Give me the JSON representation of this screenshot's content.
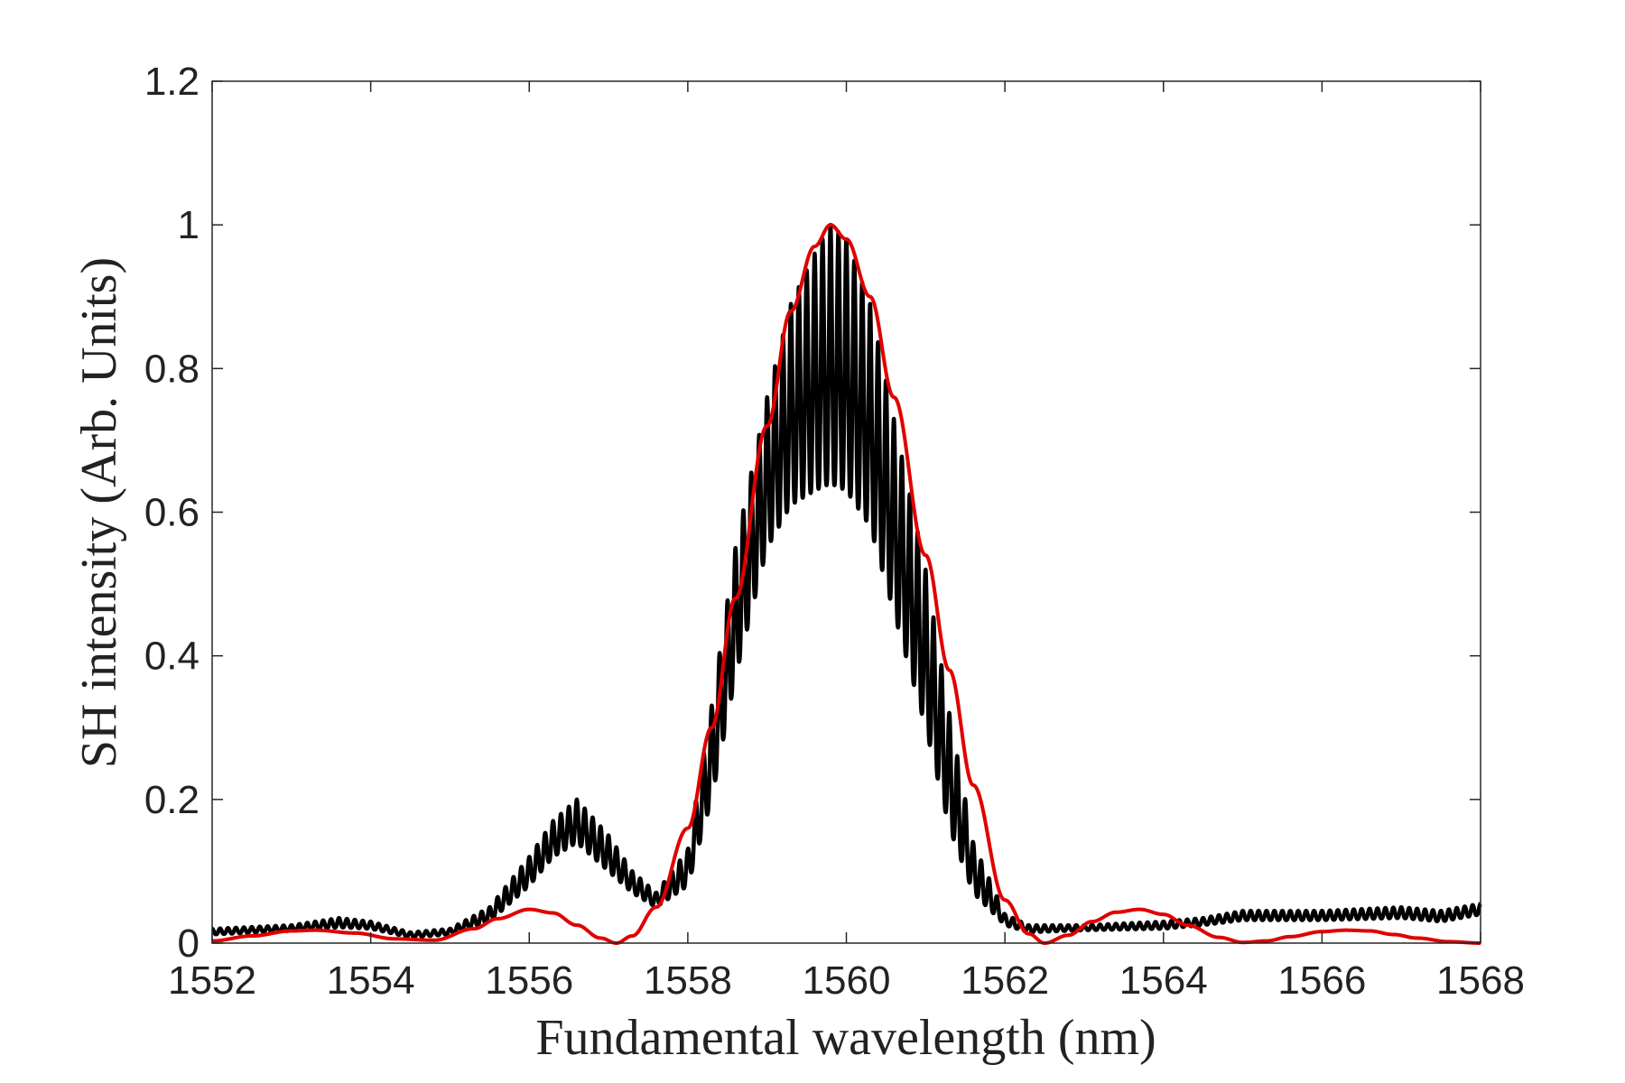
{
  "chart_data": {
    "type": "line",
    "title": "",
    "xlabel": "Fundamental wavelength (nm)",
    "ylabel": "SH intensity (Arb. Units)",
    "xlim": [
      1552,
      1568
    ],
    "ylim": [
      0,
      1.2
    ],
    "x_ticks": [
      1552,
      1554,
      1556,
      1558,
      1560,
      1562,
      1564,
      1566,
      1568
    ],
    "x_tick_labels": [
      "1552",
      "1554",
      "1556",
      "1558",
      "1560",
      "1562",
      "1564",
      "1566",
      "1568"
    ],
    "y_ticks": [
      0,
      0.2,
      0.4,
      0.6,
      0.8,
      1.0,
      1.2
    ],
    "y_tick_labels": [
      "0",
      "0.2",
      "0.4",
      "0.6",
      "0.8",
      "1",
      "1.2"
    ],
    "grid": false,
    "legend": "none",
    "series": [
      {
        "color": "#000000",
        "style": "solid",
        "oscillation_period_nm": 0.1,
        "upper_envelope": {
          "x": [
            1552,
            1553,
            1553.6,
            1554,
            1554.5,
            1555,
            1555.5,
            1556,
            1556.3,
            1556.6,
            1557,
            1557.3,
            1557.6,
            1558,
            1558.3,
            1558.6,
            1559,
            1559.3,
            1559.6,
            1559.8,
            1560,
            1560.3,
            1560.6,
            1561,
            1561.3,
            1561.6,
            1562,
            1562.3,
            1563,
            1564,
            1564.5,
            1565,
            1566,
            1567,
            1567.5,
            1568
          ],
          "y": [
            0.02,
            0.025,
            0.035,
            0.03,
            0.015,
            0.02,
            0.05,
            0.12,
            0.17,
            0.2,
            0.15,
            0.1,
            0.07,
            0.13,
            0.33,
            0.55,
            0.76,
            0.89,
            0.96,
            1.0,
            0.98,
            0.89,
            0.73,
            0.52,
            0.32,
            0.14,
            0.04,
            0.025,
            0.025,
            0.03,
            0.035,
            0.045,
            0.045,
            0.05,
            0.045,
            0.055
          ]
        },
        "lower_envelope": {
          "x": [
            1552,
            1553,
            1553.6,
            1554,
            1554.5,
            1555,
            1555.5,
            1556,
            1556.3,
            1556.6,
            1557,
            1557.3,
            1557.6,
            1558,
            1558.3,
            1558.6,
            1559,
            1559.3,
            1559.6,
            1559.8,
            1560,
            1560.3,
            1560.6,
            1561,
            1561.3,
            1561.6,
            1562,
            1562.3,
            1563,
            1564,
            1564.5,
            1565,
            1566,
            1567,
            1567.5,
            1568
          ],
          "y": [
            0.012,
            0.017,
            0.022,
            0.02,
            0.008,
            0.012,
            0.03,
            0.08,
            0.12,
            0.14,
            0.1,
            0.07,
            0.05,
            0.08,
            0.2,
            0.37,
            0.55,
            0.61,
            0.63,
            0.64,
            0.63,
            0.58,
            0.46,
            0.3,
            0.16,
            0.07,
            0.025,
            0.015,
            0.018,
            0.02,
            0.025,
            0.032,
            0.032,
            0.035,
            0.03,
            0.04
          ]
        }
      },
      {
        "color": "#e00000",
        "style": "solid",
        "x": [
          1552,
          1552.5,
          1553,
          1553.3,
          1553.8,
          1554.3,
          1554.8,
          1555.3,
          1555.6,
          1556,
          1556.3,
          1556.6,
          1556.9,
          1557.1,
          1557.3,
          1557.6,
          1558,
          1558.3,
          1558.6,
          1559,
          1559.3,
          1559.6,
          1559.8,
          1560,
          1560.3,
          1560.6,
          1561,
          1561.3,
          1561.6,
          1562,
          1562.3,
          1562.5,
          1562.8,
          1563.1,
          1563.4,
          1563.7,
          1564,
          1564.3,
          1564.7,
          1565,
          1565.3,
          1565.6,
          1566,
          1566.3,
          1566.6,
          1566.9,
          1567.2,
          1567.6,
          1568
        ],
        "y": [
          0.003,
          0.01,
          0.017,
          0.018,
          0.014,
          0.006,
          0.004,
          0.02,
          0.034,
          0.047,
          0.042,
          0.025,
          0.007,
          0.0,
          0.01,
          0.05,
          0.16,
          0.3,
          0.48,
          0.72,
          0.88,
          0.97,
          1.0,
          0.98,
          0.9,
          0.76,
          0.54,
          0.38,
          0.22,
          0.06,
          0.013,
          0.0,
          0.011,
          0.03,
          0.043,
          0.047,
          0.04,
          0.025,
          0.008,
          0.001,
          0.003,
          0.009,
          0.016,
          0.018,
          0.017,
          0.012,
          0.007,
          0.002,
          0.0
        ]
      }
    ]
  }
}
